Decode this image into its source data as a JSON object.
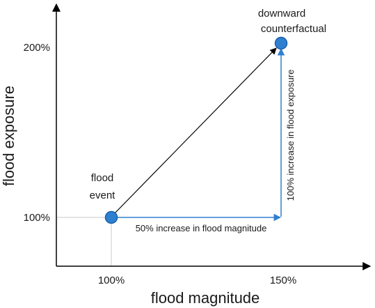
{
  "axes": {
    "x_title": "flood magnitude",
    "y_title": "flood exposure",
    "x_ticks": [
      "100%",
      "150%"
    ],
    "y_ticks": [
      "100%",
      "200%"
    ]
  },
  "points": {
    "event_line1": "flood",
    "event_line2": "event",
    "counterfactual_line1": "downward",
    "counterfactual_line2": "counterfactual"
  },
  "annotations": {
    "magnitude_increase": "50% increase in flood magnitude",
    "exposure_increase": "100% increase in flood exposure"
  },
  "colors": {
    "point_fill": "#2f7fd0",
    "point_stroke": "#1c5fa8",
    "blue_arrow": "#2f7fd0",
    "guide": "#c8c8c8",
    "axis": "#000000"
  }
}
